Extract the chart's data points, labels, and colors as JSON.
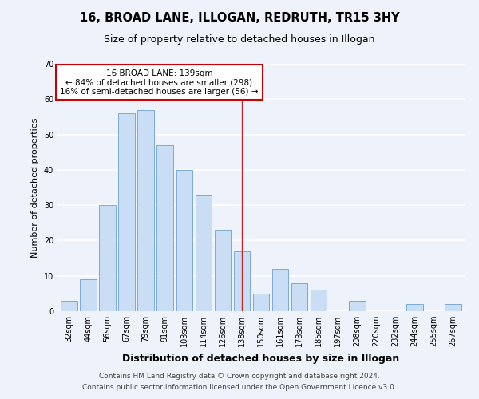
{
  "title": "16, BROAD LANE, ILLOGAN, REDRUTH, TR15 3HY",
  "subtitle": "Size of property relative to detached houses in Illogan",
  "xlabel": "Distribution of detached houses by size in Illogan",
  "ylabel": "Number of detached properties",
  "bar_labels": [
    "32sqm",
    "44sqm",
    "56sqm",
    "67sqm",
    "79sqm",
    "91sqm",
    "103sqm",
    "114sqm",
    "126sqm",
    "138sqm",
    "150sqm",
    "161sqm",
    "173sqm",
    "185sqm",
    "197sqm",
    "208sqm",
    "220sqm",
    "232sqm",
    "244sqm",
    "255sqm",
    "267sqm"
  ],
  "bar_values": [
    3,
    9,
    30,
    56,
    57,
    47,
    40,
    33,
    23,
    17,
    5,
    12,
    8,
    6,
    0,
    3,
    0,
    0,
    2,
    0,
    2
  ],
  "bar_color": "#c9ddf5",
  "bar_edge_color": "#7aaad4",
  "highlight_bar_index": 9,
  "highlight_line_color": "#cc2222",
  "ylim": [
    0,
    70
  ],
  "yticks": [
    0,
    10,
    20,
    30,
    40,
    50,
    60,
    70
  ],
  "annotation_title": "16 BROAD LANE: 139sqm",
  "annotation_line1": "← 84% of detached houses are smaller (298)",
  "annotation_line2": "16% of semi-detached houses are larger (56) →",
  "annotation_box_color": "#ffffff",
  "annotation_box_edge_color": "#cc0000",
  "footer_line1": "Contains HM Land Registry data © Crown copyright and database right 2024.",
  "footer_line2": "Contains public sector information licensed under the Open Government Licence v3.0.",
  "background_color": "#eef2fa",
  "grid_color": "#ffffff",
  "title_fontsize": 10.5,
  "subtitle_fontsize": 9,
  "xlabel_fontsize": 9,
  "ylabel_fontsize": 8,
  "tick_fontsize": 7,
  "footer_fontsize": 6.5,
  "annotation_fontsize": 7.5
}
